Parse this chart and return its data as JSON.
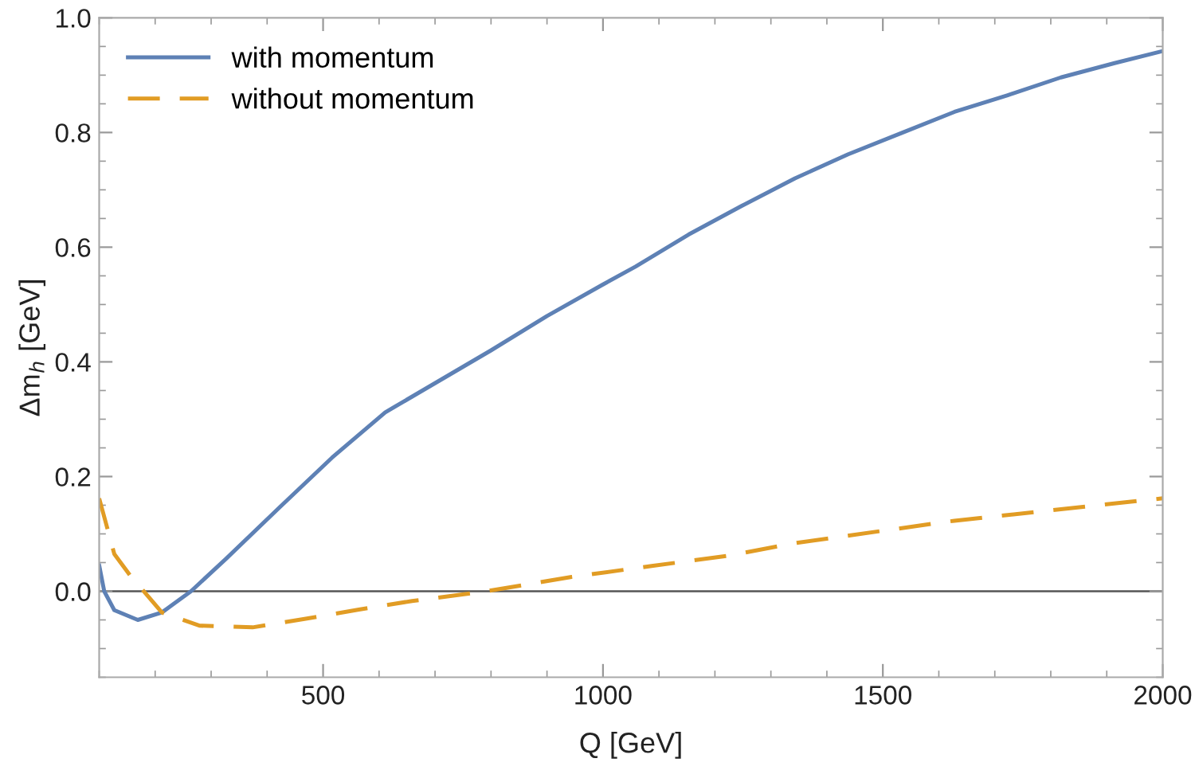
{
  "chart_data": {
    "type": "line",
    "xlabel": "Q [GeV]",
    "ylabel": "Δm$_{h}$ [GeV]",
    "xlim": [
      100,
      2000
    ],
    "xticks": [
      500,
      1000,
      1500,
      2000
    ],
    "ylim": [
      -0.15,
      1.0
    ],
    "yticks": [
      {
        "value": 0,
        "label": "0.0"
      },
      {
        "value": 0.2,
        "label": "0.2"
      },
      {
        "value": 0.4,
        "label": "0.4"
      },
      {
        "value": 0.6,
        "label": "0.6"
      },
      {
        "value": 0.8,
        "label": "0.8"
      },
      {
        "value": 1.0,
        "label": "1.0"
      }
    ],
    "grid": false,
    "legend": "top left",
    "marker": "none",
    "ref_lines": [
      {
        "axis": "y",
        "value": 0,
        "color": "#555555",
        "line_style": "solid"
      }
    ],
    "series": [
      {
        "name": "with momentum",
        "color": "#5e81b5",
        "line_style": "solid",
        "x": [
          100,
          109,
          127,
          169,
          212,
          264,
          326,
          421,
          516,
          611,
          800,
          900,
          1000,
          1058,
          1153,
          1248,
          1343,
          1438,
          1533,
          1628,
          1723,
          1818,
          1914,
          2000
        ],
        "values": [
          0.045,
          0.0,
          -0.033,
          -0.05,
          -0.037,
          0.0,
          0.056,
          0.145,
          0.233,
          0.312,
          0.42,
          0.48,
          0.535,
          0.566,
          0.622,
          0.672,
          0.72,
          0.762,
          0.799,
          0.836,
          0.865,
          0.896,
          0.921,
          0.942
        ]
      },
      {
        "name": "without momentum",
        "color": "#e19c24",
        "line_style": "dashed",
        "x": [
          100,
          127,
          155,
          212,
          279,
          374,
          469,
          564,
          659,
          792,
          944,
          1087,
          1224,
          1343,
          1628,
          1961,
          2000
        ],
        "values": [
          0.162,
          0.065,
          0.028,
          -0.037,
          -0.06,
          -0.063,
          -0.048,
          -0.032,
          -0.017,
          0.0,
          0.025,
          0.044,
          0.062,
          0.084,
          0.123,
          0.158,
          0.162
        ]
      }
    ]
  }
}
